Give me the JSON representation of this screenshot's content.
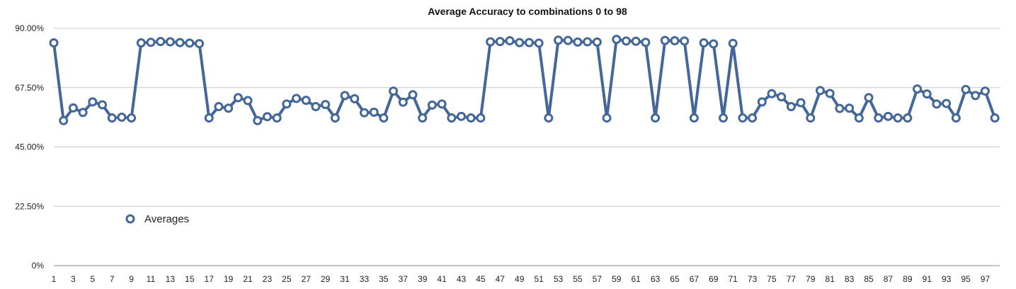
{
  "chart_data": {
    "type": "line",
    "title": "Average Accuracy to combinations 0 to 98",
    "xlabel": "",
    "ylabel": "",
    "x": [
      1,
      2,
      3,
      4,
      5,
      6,
      7,
      8,
      9,
      10,
      11,
      12,
      13,
      14,
      15,
      16,
      17,
      18,
      19,
      20,
      21,
      22,
      23,
      24,
      25,
      26,
      27,
      28,
      29,
      30,
      31,
      32,
      33,
      34,
      35,
      36,
      37,
      38,
      39,
      40,
      41,
      42,
      43,
      44,
      45,
      46,
      47,
      48,
      49,
      50,
      51,
      52,
      53,
      54,
      55,
      56,
      57,
      58,
      59,
      60,
      61,
      62,
      63,
      64,
      65,
      66,
      67,
      68,
      69,
      70,
      71,
      72,
      73,
      74,
      75,
      76,
      77,
      78,
      79,
      80,
      81,
      82,
      83,
      84,
      85,
      86,
      87,
      88,
      89,
      90,
      91,
      92,
      93,
      94,
      95,
      96,
      97,
      98
    ],
    "x_tick_labels": [
      "1",
      "3",
      "5",
      "7",
      "9",
      "11",
      "13",
      "15",
      "17",
      "19",
      "21",
      "23",
      "25",
      "27",
      "29",
      "31",
      "33",
      "35",
      "37",
      "39",
      "41",
      "43",
      "45",
      "47",
      "49",
      "51",
      "53",
      "55",
      "57",
      "59",
      "61",
      "63",
      "65",
      "67",
      "69",
      "71",
      "73",
      "75",
      "77",
      "79",
      "81",
      "83",
      "85",
      "87",
      "89",
      "91",
      "93",
      "95",
      "97"
    ],
    "x_tick_values": [
      1,
      3,
      5,
      7,
      9,
      11,
      13,
      15,
      17,
      19,
      21,
      23,
      25,
      27,
      29,
      31,
      33,
      35,
      37,
      39,
      41,
      43,
      45,
      47,
      49,
      51,
      53,
      55,
      57,
      59,
      61,
      63,
      65,
      67,
      69,
      71,
      73,
      75,
      77,
      79,
      81,
      83,
      85,
      87,
      89,
      91,
      93,
      95,
      97
    ],
    "xlim": [
      1,
      98.5
    ],
    "ylim": [
      0,
      90
    ],
    "y_ticks": [
      0,
      22.5,
      45,
      67.5,
      90
    ],
    "y_tick_labels": [
      "0%",
      "22.50%",
      "45.00%",
      "67.50%",
      "90.00%"
    ],
    "grid": true,
    "legend_placement": "lower-left",
    "series": [
      {
        "name": "Averages",
        "color": "#44679A",
        "values": [
          84.5,
          55.0,
          59.8,
          58.1,
          62.1,
          61.0,
          56.0,
          56.3,
          56.0,
          84.5,
          84.7,
          85.0,
          84.9,
          84.6,
          84.4,
          84.2,
          56.0,
          60.3,
          59.7,
          63.7,
          62.6,
          55.0,
          56.5,
          56.0,
          61.3,
          63.4,
          62.7,
          60.3,
          61.1,
          56.0,
          64.5,
          63.3,
          58.0,
          58.2,
          56.0,
          66.2,
          62.0,
          64.8,
          56.0,
          60.9,
          61.3,
          56.0,
          56.6,
          56.0,
          56.0,
          84.9,
          85.0,
          85.3,
          84.6,
          84.6,
          84.4,
          56.0,
          85.5,
          85.4,
          84.8,
          84.9,
          84.8,
          56.0,
          85.8,
          85.2,
          85.1,
          84.7,
          56.0,
          85.4,
          85.3,
          85.2,
          56.0,
          84.5,
          84.1,
          56.0,
          84.3,
          56.0,
          56.0,
          62.1,
          65.2,
          64.0,
          60.3,
          61.8,
          56.0,
          66.4,
          65.3,
          59.6,
          59.7,
          56.0,
          63.7,
          56.0,
          56.6,
          56.0,
          56.0,
          67.0,
          65.1,
          61.3,
          61.5,
          56.0,
          66.8,
          64.5,
          66.2,
          56.0
        ]
      }
    ]
  }
}
